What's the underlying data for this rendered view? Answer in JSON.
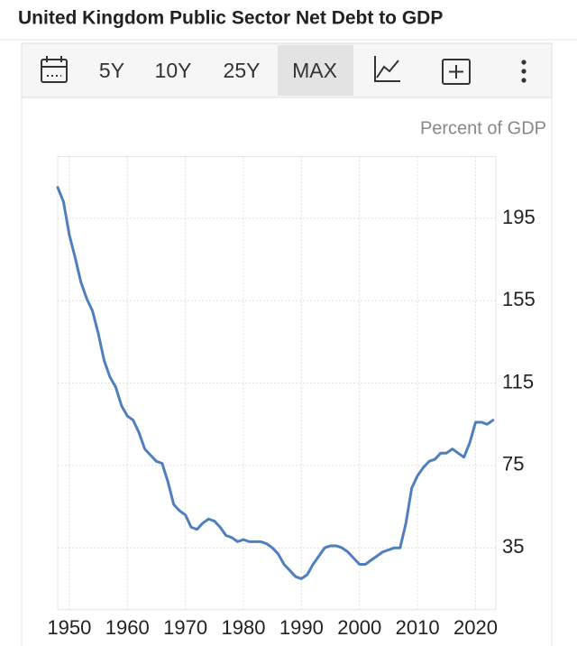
{
  "toolbar": [
    "5Y",
    "10Y",
    "25Y",
    "MAX"
  ],
  "chart_data": {
    "type": "line",
    "title": "United Kingdom Public Sector Net Debt to GDP",
    "y_label": "Percent of GDP",
    "x": [
      1948,
      1949,
      1950,
      1951,
      1952,
      1953,
      1954,
      1955,
      1956,
      1957,
      1958,
      1959,
      1960,
      1961,
      1962,
      1963,
      1964,
      1965,
      1966,
      1967,
      1968,
      1969,
      1970,
      1971,
      1972,
      1973,
      1974,
      1975,
      1976,
      1977,
      1978,
      1979,
      1980,
      1981,
      1982,
      1983,
      1984,
      1985,
      1986,
      1987,
      1988,
      1989,
      1990,
      1991,
      1992,
      1993,
      1994,
      1995,
      1996,
      1997,
      1998,
      1999,
      2000,
      2001,
      2002,
      2003,
      2004,
      2005,
      2006,
      2007,
      2008,
      2009,
      2010,
      2011,
      2012,
      2013,
      2014,
      2015,
      2016,
      2017,
      2018,
      2019,
      2020,
      2021,
      2022,
      2023
    ],
    "values": [
      210,
      203,
      187,
      176,
      164,
      156,
      150,
      139,
      126,
      118,
      113,
      104,
      99,
      97,
      91,
      83,
      80,
      77,
      76,
      67,
      56,
      53,
      51,
      45,
      44,
      47,
      49,
      48,
      45,
      41,
      40,
      38,
      39,
      38,
      38,
      38,
      37,
      35,
      32,
      27,
      24,
      21,
      20,
      22,
      27,
      31,
      35,
      36,
      36,
      35,
      33,
      30,
      27,
      27,
      29,
      31,
      33,
      34,
      35,
      35,
      47,
      64,
      70,
      74,
      77,
      78,
      81,
      81,
      83,
      81,
      79,
      86,
      96,
      96,
      95,
      97
    ],
    "color": "#4f80bd",
    "xlim": [
      1948,
      2023.5
    ],
    "xticks": [
      1950,
      1960,
      1970,
      1980,
      1990,
      2000,
      2010,
      2020
    ],
    "ylim": [
      5,
      225
    ],
    "yticks": [
      35,
      75,
      115,
      155,
      195
    ],
    "grid": true
  }
}
